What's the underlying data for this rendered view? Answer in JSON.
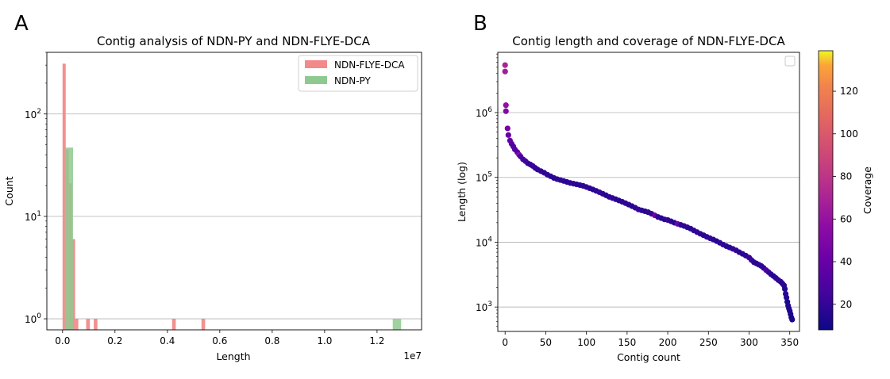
{
  "panel_a_letter": "A",
  "panel_b_letter": "B",
  "chart_data": [
    {
      "type": "bar",
      "title": "Contig analysis of NDN-PY and NDN-FLYE-DCA",
      "xlabel": "Length",
      "x_offset_label": "1e7",
      "ylabel": "Count",
      "xscale": "linear",
      "yscale": "log",
      "xlim": [
        -0.06,
        1.37
      ],
      "ylim": [
        0.78,
        400
      ],
      "xtick_labels": [
        "0.0",
        "0.2",
        "0.4",
        "0.6",
        "0.8",
        "1.0",
        "1.2"
      ],
      "ytick_labels": [
        {
          "base": "10",
          "exp": "0"
        },
        {
          "base": "10",
          "exp": "1"
        },
        {
          "base": "10",
          "exp": "2"
        }
      ],
      "grid": "y",
      "legend_position": "upper right",
      "series": [
        {
          "name": "NDN-FLYE-DCA",
          "color": "#f28a8a",
          "bins": [
            {
              "x0": 0.0,
              "x1": 0.012,
              "count": 310
            },
            {
              "x0": 0.012,
              "x1": 0.024,
              "count": 45
            },
            {
              "x0": 0.024,
              "x1": 0.036,
              "count": 21
            },
            {
              "x0": 0.036,
              "x1": 0.048,
              "count": 6
            },
            {
              "x0": 0.048,
              "x1": 0.06,
              "count": 1
            },
            {
              "x0": 0.09,
              "x1": 0.104,
              "count": 1
            },
            {
              "x0": 0.119,
              "x1": 0.133,
              "count": 1
            },
            {
              "x0": 0.418,
              "x1": 0.432,
              "count": 1
            },
            {
              "x0": 0.53,
              "x1": 0.544,
              "count": 1
            }
          ]
        },
        {
          "name": "NDN-PY",
          "color": "#8fc98f",
          "bins": [
            {
              "x0": 0.009,
              "x1": 0.04,
              "count": 47
            },
            {
              "x0": 1.26,
              "x1": 1.292,
              "count": 1
            }
          ]
        }
      ]
    },
    {
      "type": "scatter",
      "title": "Contig length and coverage of NDN-FLYE-DCA",
      "xlabel": "Contig count",
      "ylabel": "Length (log)",
      "xscale": "linear",
      "yscale": "log",
      "xlim": [
        -9,
        362
      ],
      "ylim": [
        420,
        8500000
      ],
      "xtick_labels": [
        "0",
        "50",
        "100",
        "150",
        "200",
        "250",
        "300",
        "350"
      ],
      "ytick_labels": [
        {
          "base": "10",
          "exp": "3"
        },
        {
          "base": "10",
          "exp": "4"
        },
        {
          "base": "10",
          "exp": "5"
        },
        {
          "base": "10",
          "exp": "6"
        }
      ],
      "grid": "y",
      "legend_position": "upper right",
      "colorbar": {
        "label": "Coverage",
        "range": [
          8,
          139
        ],
        "ticks": [
          20,
          40,
          60,
          80,
          100,
          120
        ],
        "colormap": "plasma"
      },
      "points_sampled_every": 1,
      "points": [
        [
          0,
          5400000,
          70
        ],
        [
          0,
          4300000,
          66
        ],
        [
          1,
          1300000,
          58
        ],
        [
          1,
          1050000,
          52
        ],
        [
          3,
          570000,
          45
        ],
        [
          4,
          450000,
          40
        ],
        [
          6,
          370000,
          38
        ],
        [
          8,
          330000,
          33
        ],
        [
          10,
          300000,
          30
        ],
        [
          12,
          270000,
          34
        ],
        [
          15,
          245000,
          30
        ],
        [
          17,
          225000,
          55
        ],
        [
          19,
          210000,
          28
        ],
        [
          22,
          190000,
          26
        ],
        [
          25,
          178000,
          24
        ],
        [
          28,
          165000,
          22
        ],
        [
          31,
          158000,
          20
        ],
        [
          34,
          150000,
          22
        ],
        [
          37,
          140000,
          20
        ],
        [
          40,
          132000,
          18
        ],
        [
          44,
          125000,
          20
        ],
        [
          48,
          118000,
          18
        ],
        [
          52,
          110000,
          20
        ],
        [
          56,
          104000,
          18
        ],
        [
          60,
          98000,
          16
        ],
        [
          64,
          94000,
          18
        ],
        [
          68,
          91000,
          20
        ],
        [
          72,
          88000,
          18
        ],
        [
          76,
          85000,
          16
        ],
        [
          80,
          82000,
          18
        ],
        [
          84,
          80000,
          20
        ],
        [
          88,
          78000,
          18
        ],
        [
          92,
          76000,
          16
        ],
        [
          96,
          74000,
          18
        ],
        [
          100,
          71000,
          20
        ],
        [
          104,
          68000,
          18
        ],
        [
          108,
          65000,
          16
        ],
        [
          112,
          62000,
          18
        ],
        [
          116,
          59000,
          22
        ],
        [
          120,
          56000,
          18
        ],
        [
          124,
          53000,
          16
        ],
        [
          128,
          50000,
          18
        ],
        [
          132,
          48000,
          20
        ],
        [
          136,
          46000,
          18
        ],
        [
          140,
          44000,
          16
        ],
        [
          144,
          42000,
          18
        ],
        [
          148,
          40000,
          20
        ],
        [
          152,
          38000,
          18
        ],
        [
          156,
          36000,
          16
        ],
        [
          160,
          34000,
          18
        ],
        [
          164,
          32000,
          20
        ],
        [
          168,
          31000,
          18
        ],
        [
          172,
          30000,
          16
        ],
        [
          176,
          29000,
          18
        ],
        [
          180,
          27500,
          20
        ],
        [
          184,
          26000,
          42
        ],
        [
          188,
          24500,
          18
        ],
        [
          192,
          23500,
          16
        ],
        [
          196,
          22500,
          18
        ],
        [
          200,
          22000,
          20
        ],
        [
          204,
          21000,
          18
        ],
        [
          208,
          20000,
          16
        ],
        [
          212,
          19200,
          44
        ],
        [
          216,
          18500,
          18
        ],
        [
          220,
          17800,
          20
        ],
        [
          224,
          17000,
          18
        ],
        [
          228,
          16200,
          16
        ],
        [
          232,
          15200,
          18
        ],
        [
          236,
          14300,
          20
        ],
        [
          240,
          13500,
          18
        ],
        [
          244,
          12800,
          16
        ],
        [
          248,
          12100,
          18
        ],
        [
          252,
          11500,
          20
        ],
        [
          256,
          11000,
          18
        ],
        [
          260,
          10400,
          16
        ],
        [
          264,
          9800,
          18
        ],
        [
          268,
          9200,
          20
        ],
        [
          272,
          8700,
          18
        ],
        [
          276,
          8300,
          16
        ],
        [
          280,
          7900,
          18
        ],
        [
          284,
          7500,
          20
        ],
        [
          288,
          7000,
          18
        ],
        [
          292,
          6600,
          16
        ],
        [
          296,
          6200,
          18
        ],
        [
          300,
          5800,
          20
        ],
        [
          303,
          5300,
          22
        ],
        [
          306,
          4900,
          18
        ],
        [
          309,
          4700,
          16
        ],
        [
          312,
          4500,
          18
        ],
        [
          315,
          4300,
          20
        ],
        [
          318,
          4000,
          18
        ],
        [
          321,
          3700,
          30
        ],
        [
          324,
          3450,
          22
        ],
        [
          327,
          3200,
          18
        ],
        [
          330,
          3000,
          16
        ],
        [
          333,
          2800,
          18
        ],
        [
          336,
          2600,
          20
        ],
        [
          339,
          2450,
          18
        ],
        [
          341,
          2300,
          16
        ],
        [
          343,
          2150,
          18
        ],
        [
          344,
          1900,
          14
        ],
        [
          345,
          1600,
          16
        ],
        [
          346,
          1400,
          14
        ],
        [
          347,
          1200,
          12
        ],
        [
          348,
          1050,
          14
        ],
        [
          349,
          950,
          12
        ],
        [
          350,
          870,
          14
        ],
        [
          351,
          780,
          12
        ],
        [
          352,
          690,
          10
        ],
        [
          353,
          640,
          12
        ]
      ]
    }
  ]
}
